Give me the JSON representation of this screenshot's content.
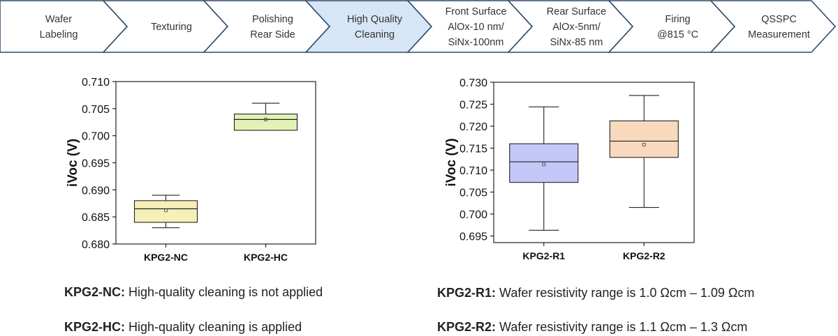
{
  "process_flow": {
    "steps": [
      {
        "lines": [
          "Wafer",
          "Labeling"
        ],
        "highlighted": false
      },
      {
        "lines": [
          "Texturing"
        ],
        "highlighted": false
      },
      {
        "lines": [
          "Polishing",
          "Rear Side"
        ],
        "highlighted": false
      },
      {
        "lines": [
          "High Quality",
          "Cleaning"
        ],
        "highlighted": true
      },
      {
        "lines": [
          "Front Surface",
          "AlOx-10 nm/",
          "SiNx-100nm"
        ],
        "highlighted": false
      },
      {
        "lines": [
          "Rear Surface",
          "AlOx-5nm/",
          "SiNx-85 nm"
        ],
        "highlighted": false
      },
      {
        "lines": [
          "Firing",
          "@815 °C"
        ],
        "highlighted": false
      },
      {
        "lines": [
          "QSSPC",
          "Measurement"
        ],
        "highlighted": false
      }
    ],
    "colors": {
      "border": "#2e4a6b",
      "fill": "#ffffff",
      "highlight_fill": "#d6e6f6",
      "text": "#333333"
    }
  },
  "chart_data": [
    {
      "type": "box",
      "title": "",
      "xlabel": "",
      "ylabel": "iVoc (V)",
      "ylim": [
        0.68,
        0.71
      ],
      "yticks": [
        "0.680",
        "0.685",
        "0.690",
        "0.695",
        "0.700",
        "0.705",
        "0.710"
      ],
      "categories": [
        "KPG2-NC",
        "KPG2-HC"
      ],
      "series": [
        {
          "name": "KPG2-NC",
          "whisker_low": 0.683,
          "q1": 0.684,
          "median": 0.6865,
          "q3": 0.688,
          "whisker_high": 0.689,
          "mean": 0.6862,
          "color": "#f6f0b8"
        },
        {
          "name": "KPG2-HC",
          "whisker_low": 0.701,
          "q1": 0.701,
          "median": 0.703,
          "q3": 0.704,
          "whisker_high": 0.706,
          "mean": 0.703,
          "color": "#e2f2b6"
        }
      ]
    },
    {
      "type": "box",
      "title": "",
      "xlabel": "",
      "ylabel": "iVoc (V)",
      "ylim": [
        0.6935,
        0.73
      ],
      "yticks": [
        "0.695",
        "0.700",
        "0.705",
        "0.710",
        "0.715",
        "0.720",
        "0.725",
        "0.730"
      ],
      "categories": [
        "KPG2-R1",
        "KPG2-R2"
      ],
      "series": [
        {
          "name": "KPG2-R1",
          "whisker_low": 0.6963,
          "q1": 0.7072,
          "median": 0.7119,
          "q3": 0.716,
          "whisker_high": 0.7244,
          "mean": 0.7113,
          "color": "#c3c8f8"
        },
        {
          "name": "KPG2-R2",
          "whisker_low": 0.7015,
          "q1": 0.7129,
          "median": 0.7166,
          "q3": 0.7212,
          "whisker_high": 0.727,
          "mean": 0.7158,
          "color": "#f9d9bd"
        }
      ]
    }
  ],
  "captions": [
    {
      "label": "KPG2-NC:",
      "text": " High-quality cleaning is not applied"
    },
    {
      "label": "KPG2-HC:",
      "text": " High-quality cleaning is applied"
    },
    {
      "label": "KPG2-R1:",
      "text": " Wafer resistivity range is 1.0  Ωcm – 1.09 Ωcm"
    },
    {
      "label": "KPG2-R2:",
      "text": " Wafer resistivity range is 1.1  Ωcm – 1.3 Ωcm"
    }
  ]
}
